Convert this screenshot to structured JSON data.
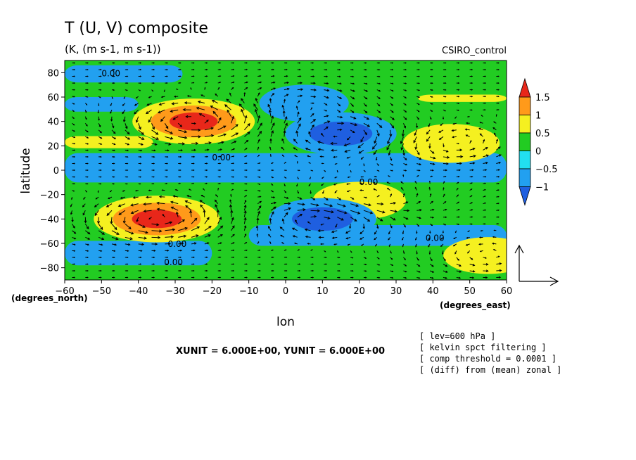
{
  "chart_data": {
    "type": "heatmap",
    "title": "T (U, V) composite",
    "subtitle": "(K, (m s-1, m s-1))",
    "model_label": "CSIRO_control",
    "xlabel": "lon",
    "ylabel": "latitude",
    "x_unit_label": "(degrees_east)",
    "y_unit_label": "(degrees_north)",
    "xlim": [
      -60,
      60
    ],
    "ylim": [
      -90,
      90
    ],
    "x_ticks": [
      -60,
      -50,
      -40,
      -30,
      -20,
      -10,
      0,
      10,
      20,
      30,
      40,
      50,
      60
    ],
    "y_ticks": [
      -80,
      -60,
      -40,
      -20,
      0,
      20,
      40,
      60,
      80
    ],
    "x_tick_labels": [
      "−60",
      "−50",
      "−40",
      "−30",
      "−20",
      "−10",
      "0",
      "10",
      "20",
      "30",
      "40",
      "50",
      "60"
    ],
    "y_tick_labels": [
      "−80",
      "−60",
      "−40",
      "−20",
      "0",
      "20",
      "40",
      "60",
      "80"
    ],
    "colorbar": {
      "levels": [
        -1.5,
        -1,
        -0.5,
        0,
        0.5,
        1,
        1.5
      ],
      "labels": [
        "1.5",
        "1",
        "0.5",
        "0",
        "−0.5",
        "−1"
      ],
      "colors": [
        "#1f5fe0",
        "#22a0f0",
        "#22e0f0",
        "#22cc22",
        "#f5f020",
        "#ff9a1a",
        "#e8271a"
      ]
    },
    "contour_labels": [
      "0.00",
      "0.00",
      "0.00",
      "0.00",
      "0.00",
      "0.00"
    ],
    "anomaly_centers": [
      {
        "lon": -25,
        "lat": 40,
        "value": 1.5
      },
      {
        "lon": -35,
        "lat": -40,
        "value": 1.6
      },
      {
        "lon": 45,
        "lat": 22,
        "value": 0.8
      },
      {
        "lon": 20,
        "lat": -25,
        "value": 0.7
      },
      {
        "lon": 15,
        "lat": 30,
        "value": -1.2
      },
      {
        "lon": 10,
        "lat": -40,
        "value": -1.1
      },
      {
        "lon": 5,
        "lat": 55,
        "value": -0.6
      },
      {
        "lon": 55,
        "lat": -70,
        "value": 0.6
      }
    ],
    "vector_scale": {
      "xunit": "6.000E+00",
      "yunit": "6.000E+00"
    },
    "footer_text": "XUNIT = 6.000E+00, YUNIT = 6.000E+00",
    "notes": [
      "[ lev=600 hPa ]",
      "[ kelvin spct filtering ]",
      "[ comp threshold = 0.0001 ]",
      "[ (diff) from (mean) zonal ]"
    ],
    "grid": false,
    "legend_position": "right"
  }
}
